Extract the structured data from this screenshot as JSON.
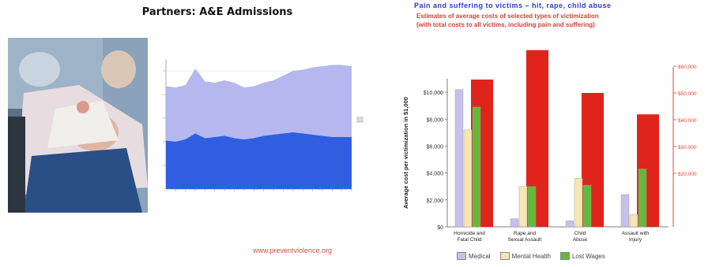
{
  "left_panel": {
    "title": "Partners: A&E Admissions",
    "footer": "www.preventviolence.org",
    "photo_icon": "medical-emergency-photo"
  },
  "right_panel": {
    "title": "Pain and suffering to victims – hit, rape, child abuse",
    "subtitle_line1": "Estimates of average costs of selected types of victimization",
    "subtitle_line2": "(with total costs to all victims, including pain and suffering)"
  },
  "chart_data": [
    {
      "type": "area",
      "title": "",
      "x": [
        1,
        2,
        3,
        4,
        5,
        6,
        7,
        8,
        9,
        10,
        11,
        12,
        13,
        14,
        15,
        16,
        17,
        18,
        19,
        20
      ],
      "series": [
        {
          "values": [
            41,
            40,
            42,
            47,
            43,
            44,
            45,
            43,
            42,
            43,
            45,
            46,
            47,
            48,
            47,
            46,
            45,
            44,
            44,
            44
          ],
          "color": "#2f5fe0"
        },
        {
          "values": [
            87,
            86,
            88,
            102,
            91,
            90,
            92,
            90,
            86,
            87,
            90,
            92,
            96,
            100,
            101,
            103,
            104,
            105,
            105,
            104
          ],
          "color": "#b4b8ee"
        }
      ],
      "ylim": [
        0,
        110
      ],
      "grid": true
    },
    {
      "type": "bar",
      "categories": [
        "Homicide and Fatal Child",
        "Rape and Sexual Assault",
        "Child Abuse",
        "Assault with Injury"
      ],
      "series": [
        {
          "name": "Medical",
          "values": [
            10200,
            600,
            450,
            2400
          ],
          "color": "#c7c0ea"
        },
        {
          "name": "Mental Health",
          "values": [
            7200,
            3000,
            3600,
            900
          ],
          "color": "#f5e6b2"
        },
        {
          "name": "Lost Wages",
          "values": [
            8900,
            3000,
            3100,
            4300
          ],
          "color": "#66b83a"
        }
      ],
      "ylabel": "Average cost per victimization in $1,000",
      "y_ticks": [
        "$10,000",
        "$8,000",
        "$6,000",
        "$4,000",
        "$2,000",
        "$0"
      ],
      "ylim": [
        0,
        11000
      ],
      "right_axis": {
        "color": "#e8413a",
        "ticks": [
          "$60,000",
          "$50,000",
          "$40,000",
          "$30,000",
          "$20,000"
        ],
        "range": [
          0,
          70000
        ]
      },
      "total_bars": [
        {
          "category": "Homicide and Fatal Child",
          "value": 55000
        },
        {
          "category": "Rape and Sexual Assault",
          "value": 66000
        },
        {
          "category": "Child Abuse",
          "value": 50000
        },
        {
          "category": "Assault with Injury",
          "value": 42000
        }
      ],
      "legend_position": "bottom"
    }
  ]
}
